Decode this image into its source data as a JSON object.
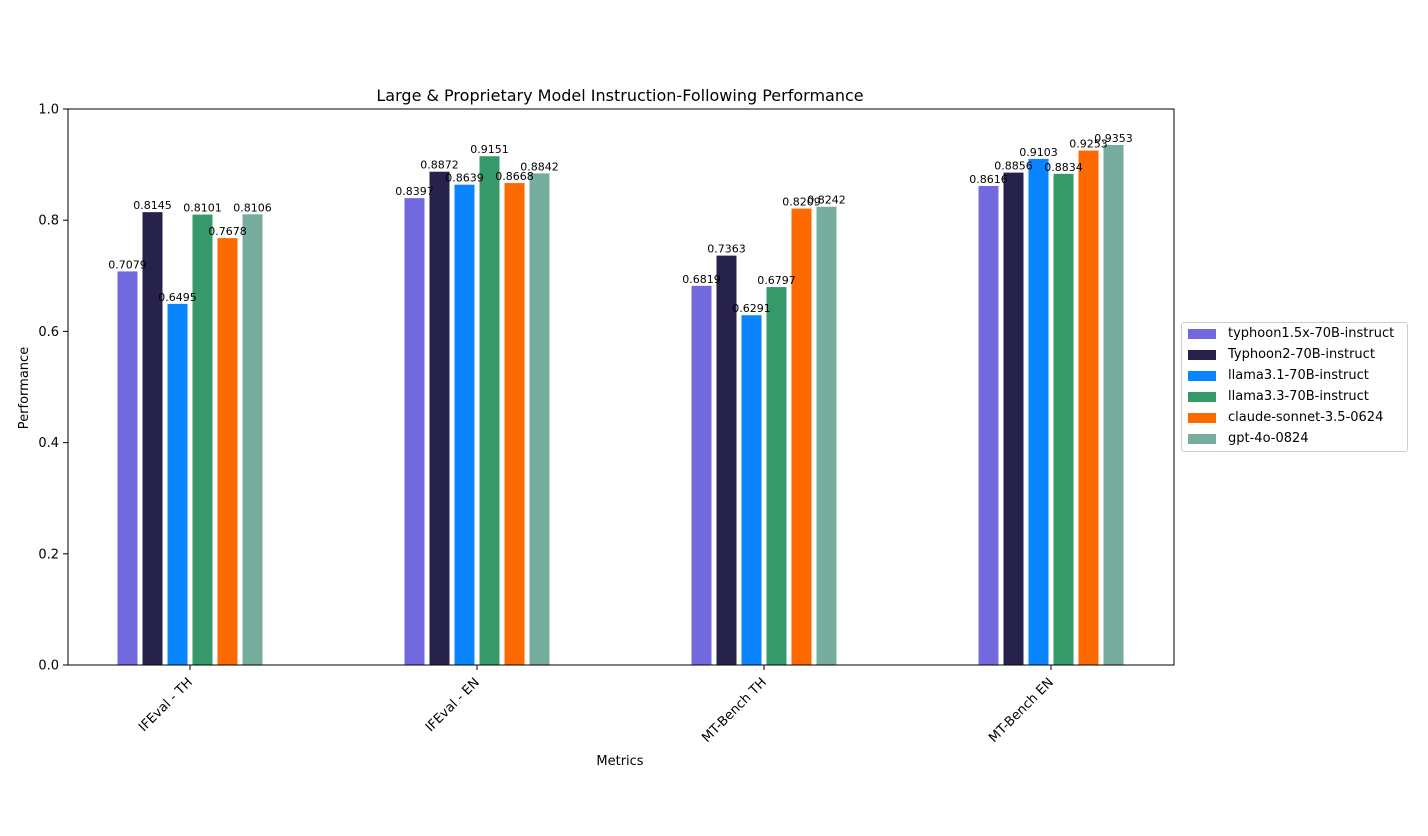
{
  "chart_data": {
    "type": "bar",
    "title": "Large & Proprietary Model Instruction-Following Performance",
    "xlabel": "Metrics",
    "ylabel": "Performance",
    "ylim": [
      0,
      1.0
    ],
    "yticks": [
      "0.0",
      "0.2",
      "0.4",
      "0.6",
      "0.8",
      "1.0"
    ],
    "categories": [
      "IFEval - TH",
      "IFEval - EN",
      "MT-Bench TH",
      "MT-Bench EN"
    ],
    "legend_position": "center-right-outside",
    "grid": false,
    "series": [
      {
        "name": "typhoon1.5x-70B-instruct",
        "color": "#7369DF",
        "values": [
          0.7079,
          0.8397,
          0.6819,
          0.8616
        ],
        "labels": [
          "0.7079",
          "0.8397",
          "0.6819",
          "0.8616"
        ]
      },
      {
        "name": "Typhoon2-70B-instruct",
        "color": "#26224B",
        "values": [
          0.8145,
          0.8872,
          0.7363,
          0.8856
        ],
        "labels": [
          "0.8145",
          "0.8872",
          "0.7363",
          "0.8856"
        ]
      },
      {
        "name": "llama3.1-70B-instruct",
        "color": "#0A84FF",
        "values": [
          0.6495,
          0.8639,
          0.6291,
          0.9103
        ],
        "labels": [
          "0.6495",
          "0.8639",
          "0.6291",
          "0.9103"
        ]
      },
      {
        "name": "llama3.3-70B-instruct",
        "color": "#35996A",
        "values": [
          0.8101,
          0.9151,
          0.6797,
          0.8834
        ],
        "labels": [
          "0.8101",
          "0.9151",
          "0.6797",
          "0.8834"
        ]
      },
      {
        "name": "claude-sonnet-3.5-0624",
        "color": "#FF6A00",
        "values": [
          0.7678,
          0.8668,
          0.8209,
          0.9253
        ],
        "labels": [
          "0.7678",
          "0.8668",
          "0.8209",
          "0.9253"
        ]
      },
      {
        "name": "gpt-4o-0824",
        "color": "#76AD9E",
        "values": [
          0.8106,
          0.8842,
          0.8242,
          0.9353
        ],
        "labels": [
          "0.8106",
          "0.8842",
          "0.8242",
          "0.9353"
        ]
      }
    ]
  }
}
